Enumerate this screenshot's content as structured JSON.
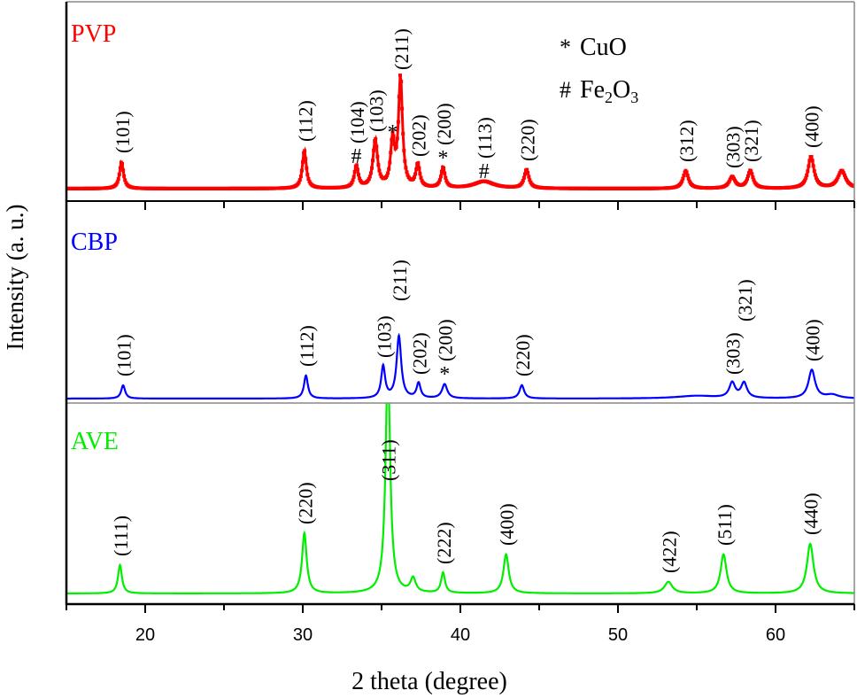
{
  "chart_data": {
    "type": "line",
    "xlabel": "2 theta (degree)",
    "ylabel": "Intensity (a. u.)",
    "xlim": [
      15,
      65
    ],
    "xticks": [
      20,
      30,
      40,
      50,
      60
    ],
    "xtick_labels": [
      "20",
      "30",
      "40",
      "50",
      "60"
    ],
    "minor_tick_step": 5,
    "grid": false,
    "y_scale": "stacked panels, arbitrary units, no y ticks",
    "legend": [
      {
        "symbol": "*",
        "label": "CuO"
      },
      {
        "symbol": "#",
        "label": "Fe2O3"
      }
    ],
    "legend_placement": "top-center",
    "panels": [
      {
        "name": "PVP",
        "color": "#ff0000",
        "markers": "square",
        "peaks": [
          {
            "two_theta": 18.5,
            "intensity": 30,
            "fwhm": 0.3,
            "hkl": "(101)",
            "marker": ""
          },
          {
            "two_theta": 30.1,
            "intensity": 43,
            "fwhm": 0.3,
            "hkl": "(112)",
            "marker": ""
          },
          {
            "two_theta": 33.4,
            "intensity": 25,
            "fwhm": 0.3,
            "hkl": "(104)",
            "marker": "#"
          },
          {
            "two_theta": 34.6,
            "intensity": 54,
            "fwhm": 0.35,
            "hkl": "(103)",
            "marker": ""
          },
          {
            "two_theta": 35.7,
            "intensity": 52,
            "fwhm": 0.3,
            "hkl": "",
            "marker": "*"
          },
          {
            "two_theta": 36.2,
            "intensity": 124,
            "fwhm": 0.3,
            "hkl": "(211)",
            "marker": ""
          },
          {
            "two_theta": 37.3,
            "intensity": 26,
            "fwhm": 0.3,
            "hkl": "(202)",
            "marker": ""
          },
          {
            "two_theta": 38.9,
            "intensity": 23,
            "fwhm": 0.3,
            "hkl": "(200)",
            "marker": "*"
          },
          {
            "two_theta": 41.5,
            "intensity": 8,
            "fwhm": 1.5,
            "hkl": "(113)",
            "marker": "#"
          },
          {
            "two_theta": 44.2,
            "intensity": 21,
            "fwhm": 0.35,
            "hkl": "(220)",
            "marker": ""
          },
          {
            "two_theta": 54.3,
            "intensity": 20,
            "fwhm": 0.4,
            "hkl": "(312)",
            "marker": ""
          },
          {
            "two_theta": 57.25,
            "intensity": 13,
            "fwhm": 0.45,
            "hkl": "(303)",
            "marker": ""
          },
          {
            "two_theta": 58.4,
            "intensity": 20,
            "fwhm": 0.4,
            "hkl": "(321)",
            "marker": ""
          },
          {
            "two_theta": 62.25,
            "intensity": 36,
            "fwhm": 0.45,
            "hkl": "(400)",
            "marker": ""
          },
          {
            "two_theta": 64.2,
            "intensity": 20,
            "fwhm": 0.6,
            "hkl": "",
            "marker": ""
          }
        ]
      },
      {
        "name": "CBP",
        "color": "#0000ff",
        "markers": "none",
        "peaks": [
          {
            "two_theta": 18.6,
            "intensity": 15,
            "fwhm": 0.3,
            "hkl": "(101)",
            "marker": ""
          },
          {
            "two_theta": 30.2,
            "intensity": 26,
            "fwhm": 0.3,
            "hkl": "(112)",
            "marker": ""
          },
          {
            "two_theta": 35.1,
            "intensity": 36,
            "fwhm": 0.3,
            "hkl": "(103)",
            "marker": ""
          },
          {
            "two_theta": 36.1,
            "intensity": 70,
            "fwhm": 0.35,
            "hkl": "(211)",
            "marker": ""
          },
          {
            "two_theta": 37.35,
            "intensity": 17,
            "fwhm": 0.3,
            "hkl": "(202)",
            "marker": ""
          },
          {
            "two_theta": 39.0,
            "intensity": 16,
            "fwhm": 0.4,
            "hkl": "(200)",
            "marker": "*"
          },
          {
            "two_theta": 43.9,
            "intensity": 15,
            "fwhm": 0.35,
            "hkl": "(220)",
            "marker": ""
          },
          {
            "two_theta": 55.0,
            "intensity": 3,
            "fwhm": 3.0,
            "hkl": "",
            "marker": ""
          },
          {
            "two_theta": 57.25,
            "intensity": 17,
            "fwhm": 0.45,
            "hkl": "(303)",
            "marker": ""
          },
          {
            "two_theta": 58.0,
            "intensity": 17,
            "fwhm": 0.45,
            "hkl": "(321)",
            "marker": ""
          },
          {
            "two_theta": 62.3,
            "intensity": 32,
            "fwhm": 0.5,
            "hkl": "(400)",
            "marker": ""
          },
          {
            "two_theta": 63.6,
            "intensity": 4,
            "fwhm": 1.0,
            "hkl": "",
            "marker": ""
          }
        ]
      },
      {
        "name": "AVE",
        "color": "#00ee00",
        "markers": "none",
        "peaks": [
          {
            "two_theta": 18.4,
            "intensity": 32,
            "fwhm": 0.3,
            "hkl": "(111)",
            "marker": ""
          },
          {
            "two_theta": 30.1,
            "intensity": 68,
            "fwhm": 0.35,
            "hkl": "(220)",
            "marker": ""
          },
          {
            "two_theta": 35.4,
            "intensity": 260,
            "fwhm": 0.35,
            "hkl": "(311)",
            "marker": ""
          },
          {
            "two_theta": 37.0,
            "intensity": 16,
            "fwhm": 0.4,
            "hkl": "",
            "marker": ""
          },
          {
            "two_theta": 38.9,
            "intensity": 23,
            "fwhm": 0.3,
            "hkl": "(222)",
            "marker": ""
          },
          {
            "two_theta": 42.9,
            "intensity": 44,
            "fwhm": 0.4,
            "hkl": "(400)",
            "marker": ""
          },
          {
            "two_theta": 53.2,
            "intensity": 13,
            "fwhm": 0.6,
            "hkl": "(422)",
            "marker": ""
          },
          {
            "two_theta": 56.7,
            "intensity": 44,
            "fwhm": 0.45,
            "hkl": "(511)",
            "marker": ""
          },
          {
            "two_theta": 62.2,
            "intensity": 56,
            "fwhm": 0.5,
            "hkl": "(440)",
            "marker": ""
          }
        ]
      }
    ]
  }
}
